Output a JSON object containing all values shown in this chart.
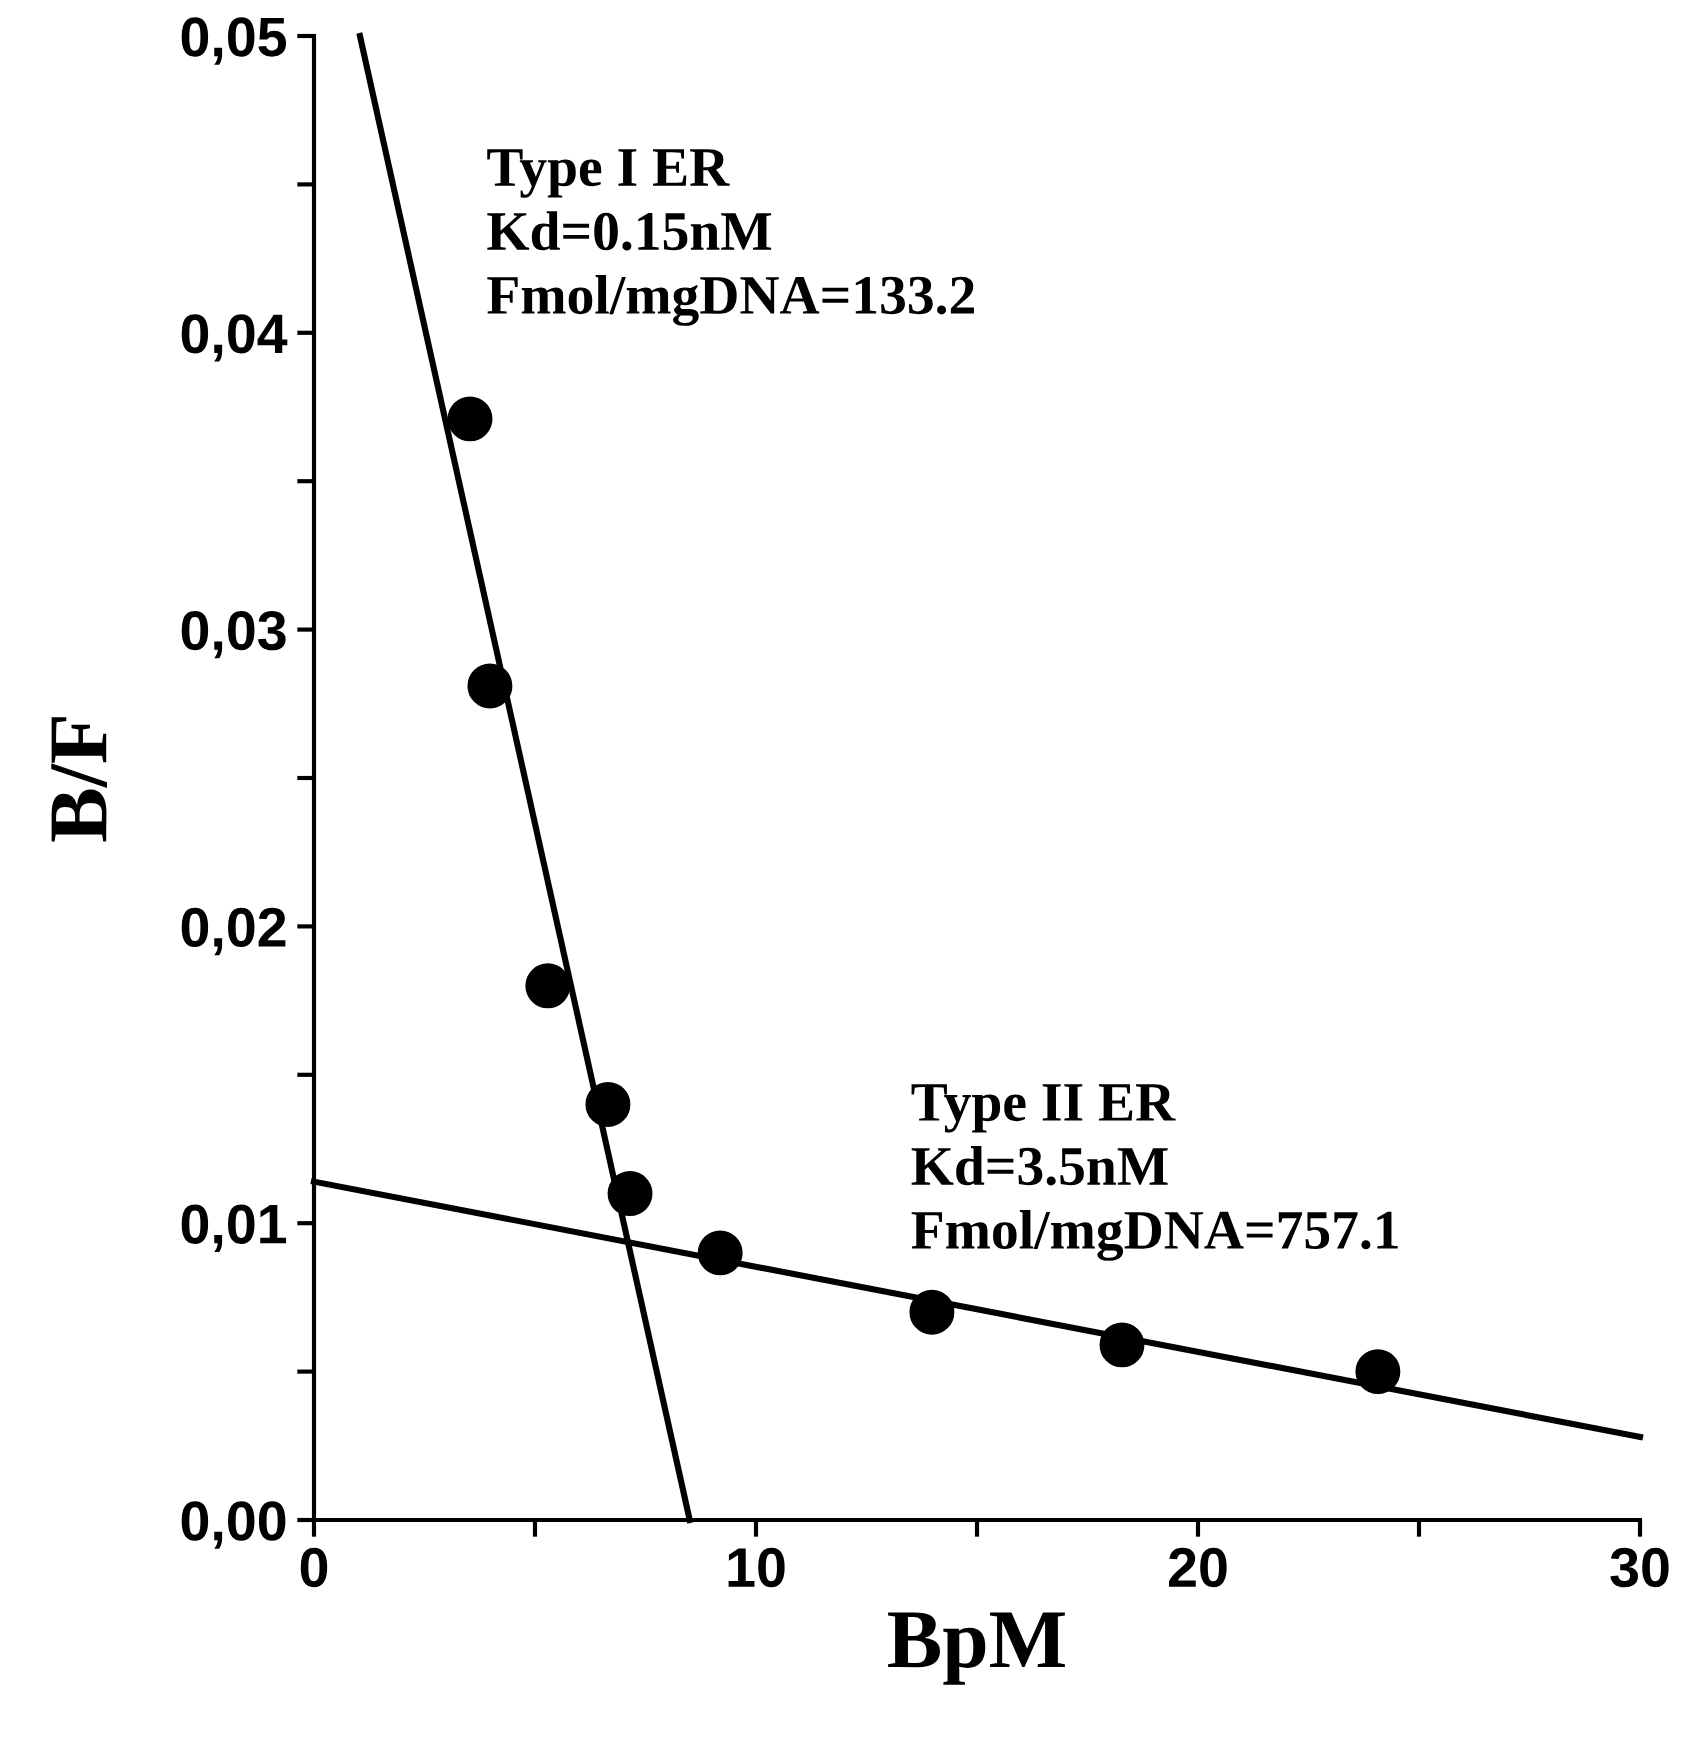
{
  "chart_data": {
    "type": "scatter",
    "xlabel": "BpM",
    "ylabel": "B/F",
    "series": [
      {
        "color": "#000000",
        "marker": "circle",
        "x": [
          3.53,
          3.98,
          5.29,
          6.65,
          7.15,
          9.19,
          13.98,
          18.28,
          24.07
        ],
        "values": [
          0.0371,
          0.0281,
          0.018,
          0.014,
          0.011,
          0.009,
          0.007,
          0.0059,
          0.005
        ]
      },
      {
        "type": "line",
        "color": "#000000",
        "marker": "none",
        "line_style": "solid",
        "x": [
          1.04,
          8.5
        ],
        "values": [
          0.05,
          0
        ]
      },
      {
        "type": "line",
        "color": "#000000",
        "marker": "none",
        "line_style": "solid",
        "x": [
          0,
          30
        ],
        "values": [
          0.0114,
          0.0028
        ]
      }
    ],
    "xlim": [
      0,
      30
    ],
    "ylim": [
      0,
      0.05
    ],
    "xticks": [
      0,
      {
        "value": 5,
        "label": null
      },
      10,
      {
        "value": 15,
        "label": null
      },
      20,
      {
        "value": 25,
        "label": null
      },
      30
    ],
    "yticks": [
      {
        "value": 0,
        "label": "0,00"
      },
      {
        "value": 0.005,
        "label": null
      },
      {
        "value": 0.01,
        "label": "0,01"
      },
      {
        "value": 0.015,
        "label": null
      },
      {
        "value": 0.02,
        "label": "0,02"
      },
      {
        "value": 0.025,
        "label": null
      },
      {
        "value": 0.03,
        "label": "0,03"
      },
      {
        "value": 0.035,
        "label": null
      },
      {
        "value": 0.04,
        "label": "0,04"
      },
      {
        "value": 0.045,
        "label": null
      },
      {
        "value": 0.05,
        "label": "0,05"
      }
    ],
    "annotations": [
      "Type I ER\nKd=0.15nM\nFmol/mgDNA=133.2",
      "Type II ER\nKd=3.5nM\nFmol/mgDNA=757.1"
    ],
    "grid": false,
    "legend": false
  }
}
